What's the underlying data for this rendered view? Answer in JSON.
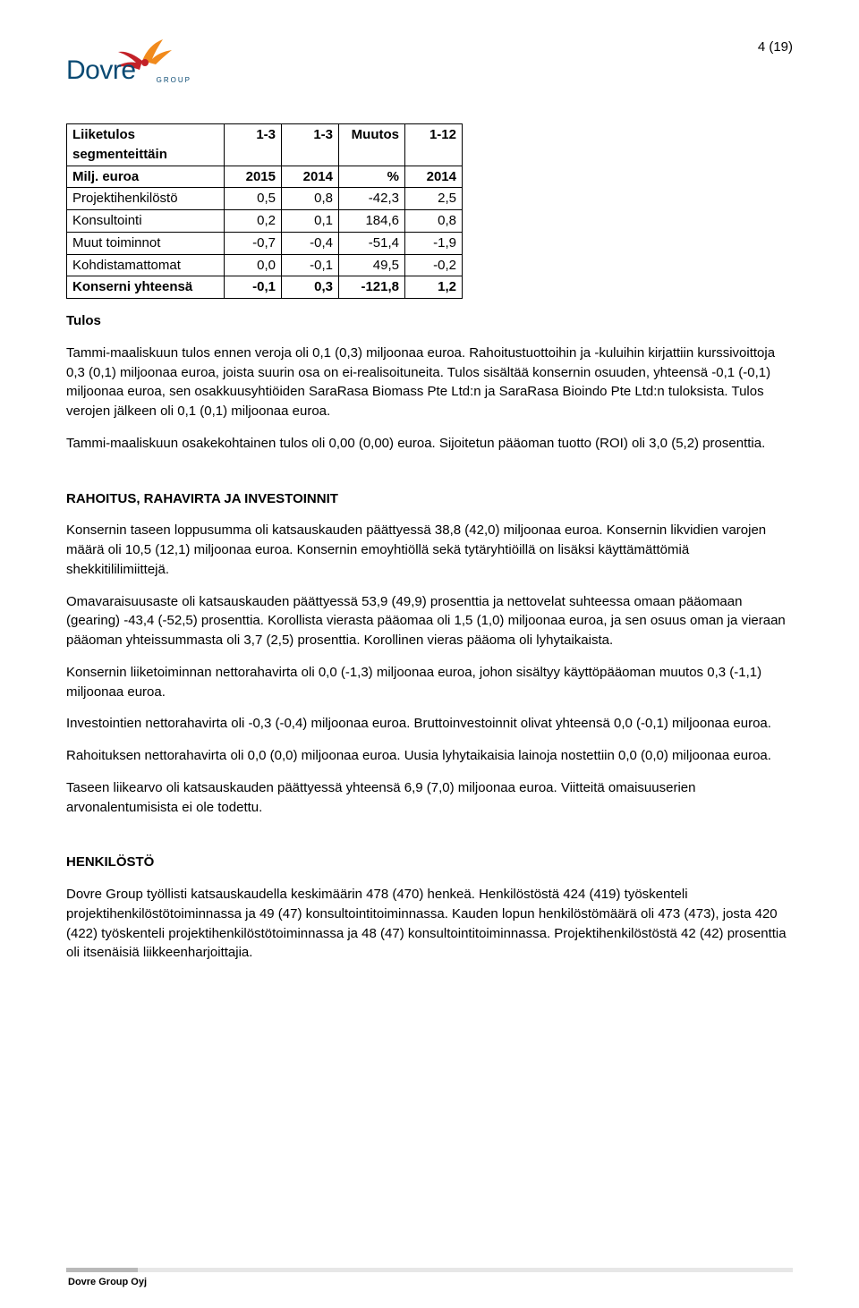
{
  "page_number": "4 (19)",
  "logo": {
    "name": "Dovre",
    "sub": "GROUP"
  },
  "table": {
    "header_top": {
      "label": "Liiketulos segmenteittäin",
      "c1": "1-3",
      "c2": "1-3",
      "c3": "Muutos",
      "c4": "1-12"
    },
    "header_bottom": {
      "label": "Milj. euroa",
      "c1": "2015",
      "c2": "2014",
      "c3": "%",
      "c4": "2014"
    },
    "rows": [
      {
        "label": "Projektihenkilöstö",
        "c1": "0,5",
        "c2": "0,8",
        "c3": "-42,3",
        "c4": "2,5"
      },
      {
        "label": "Konsultointi",
        "c1": "0,2",
        "c2": "0,1",
        "c3": "184,6",
        "c4": "0,8"
      },
      {
        "label": "Muut toiminnot",
        "c1": "-0,7",
        "c2": "-0,4",
        "c3": "-51,4",
        "c4": "-1,9"
      },
      {
        "label": "Kohdistamattomat",
        "c1": "0,0",
        "c2": "-0,1",
        "c3": "49,5",
        "c4": "-0,2"
      },
      {
        "label": "Konserni yhteensä",
        "c1": "-0,1",
        "c2": "0,3",
        "c3": "-121,8",
        "c4": "1,2",
        "bold": true
      }
    ]
  },
  "sections": {
    "tulos_heading": "Tulos",
    "tulos_p1": "Tammi-maaliskuun tulos ennen veroja oli 0,1 (0,3) miljoonaa euroa. Rahoitustuottoihin ja -kuluihin kirjattiin kurssivoittoja 0,3 (0,1) miljoonaa euroa, joista suurin osa on ei-realisoituneita. Tulos sisältää konsernin osuuden, yhteensä -0,1 (-0,1) miljoonaa euroa, sen osakkuusyhtiöiden SaraRasa Biomass Pte Ltd:n ja SaraRasa Bioindo Pte Ltd:n tuloksista. Tulos verojen jälkeen oli 0,1 (0,1) miljoonaa euroa.",
    "tulos_p2": "Tammi-maaliskuun osakekohtainen tulos oli 0,00 (0,00) euroa. Sijoitetun pääoman tuotto (ROI) oli 3,0 (5,2) prosenttia.",
    "rahoitus_heading": "RAHOITUS, RAHAVIRTA JA INVESTOINNIT",
    "rahoitus_p1": "Konsernin taseen loppusumma oli katsauskauden päättyessä 38,8 (42,0) miljoonaa euroa. Konsernin likvidien varojen määrä oli 10,5 (12,1) miljoonaa euroa. Konsernin emoyhtiöllä sekä tytäryhtiöillä on lisäksi käyttämättömiä shekkitililimiittejä.",
    "rahoitus_p2": "Omavaraisuusaste oli katsauskauden päättyessä 53,9 (49,9) prosenttia ja nettovelat suhteessa omaan pääomaan (gearing) -43,4 (-52,5) prosenttia. Korollista vierasta pääomaa oli 1,5 (1,0) miljoonaa euroa, ja sen osuus oman ja vieraan pääoman yhteissummasta oli 3,7 (2,5) prosenttia. Korollinen vieras pääoma oli lyhytaikaista.",
    "rahoitus_p3": "Konsernin liiketoiminnan nettorahavirta oli 0,0 (-1,3) miljoonaa euroa, johon sisältyy käyttöpääoman muutos 0,3 (-1,1) miljoonaa euroa.",
    "rahoitus_p4": "Investointien nettorahavirta oli -0,3 (-0,4) miljoonaa euroa. Bruttoinvestoinnit olivat yhteensä 0,0 (-0,1) miljoonaa euroa.",
    "rahoitus_p5": "Rahoituksen nettorahavirta oli 0,0 (0,0) miljoonaa euroa. Uusia lyhytaikaisia lainoja nostettiin 0,0 (0,0) miljoonaa euroa.",
    "rahoitus_p6": "Taseen liikearvo oli katsauskauden päättyessä yhteensä 6,9 (7,0) miljoonaa euroa. Viitteitä omaisuuserien arvonalentumisista ei ole todettu.",
    "henkilosto_heading": "HENKILÖSTÖ",
    "henkilosto_p1": "Dovre Group työllisti katsauskaudella keskimäärin 478 (470) henkeä. Henkilöstöstä 424 (419) työskenteli projektihenkilöstötoiminnassa ja 49 (47) konsultointitoiminnassa. Kauden lopun henkilöstömäärä oli 473 (473), josta 420 (422) työskenteli projektihenkilöstötoiminnassa ja 48 (47) konsultointitoiminnassa. Projektihenkilöstöstä 42 (42) prosenttia oli itsenäisiä liikkeenharjoittajia."
  },
  "footer": "Dovre Group Oyj",
  "colors": {
    "text": "#000000",
    "logo_blue": "#0a4a73",
    "logo_orange": "#f18a1c",
    "logo_red": "#c32128",
    "footer_bar_dark": "#b9b9b9",
    "footer_bar_light": "#e7e7e7"
  }
}
